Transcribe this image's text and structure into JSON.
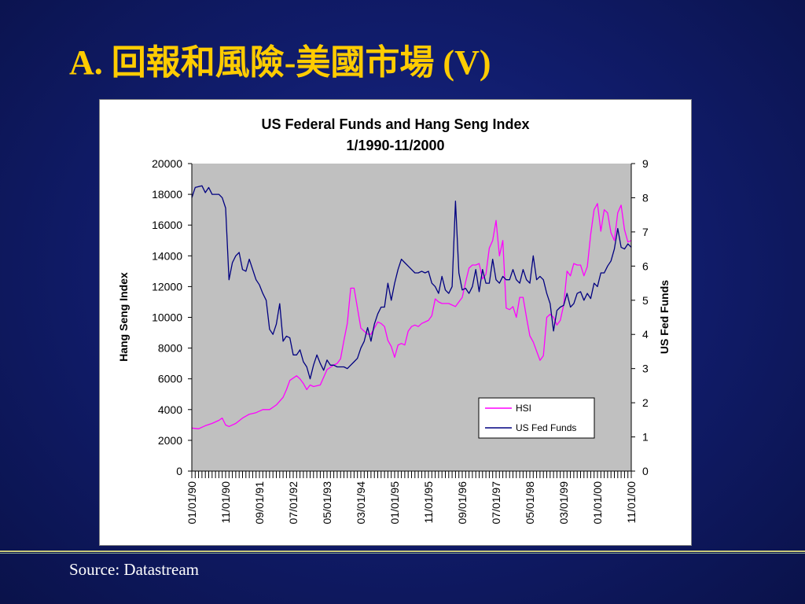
{
  "slide": {
    "title": "A. 回報和風險-美國市場 (V)",
    "source": "Source: Datastream",
    "title_color": "#ffcc00",
    "background_color": "#111d6e"
  },
  "chart_data": {
    "type": "line",
    "title": "US Federal Funds and Hang Seng Index",
    "subtitle": "1/1990-11/2000",
    "ylabel_left": "Hang Seng Index",
    "ylabel_right": "US Fed Funds",
    "ylim_left": [
      0,
      20000
    ],
    "ylim_right": [
      0,
      9
    ],
    "yticks_left": [
      "0",
      "2000",
      "4000",
      "6000",
      "8000",
      "10000",
      "12000",
      "14000",
      "16000",
      "18000",
      "20000"
    ],
    "yticks_right": [
      "0",
      "1",
      "2",
      "3",
      "4",
      "5",
      "6",
      "7",
      "8",
      "9"
    ],
    "x_start": "1990-01",
    "x_end": "2000-11",
    "xtick_labels": [
      "01/01/90",
      "11/01/90",
      "09/01/91",
      "07/01/92",
      "05/01/93",
      "03/01/94",
      "01/01/95",
      "11/01/95",
      "09/01/96",
      "07/01/97",
      "05/01/98",
      "03/01/99",
      "01/01/00",
      "11/01/00"
    ],
    "plot_background": "#c0c0c0",
    "legend_position": "lower-right",
    "series": [
      {
        "name": "HSI",
        "axis": "left",
        "color": "#ff00ff",
        "points": [
          [
            "1990-01",
            2800
          ],
          [
            "1990-03",
            2750
          ],
          [
            "1990-05",
            2950
          ],
          [
            "1990-07",
            3100
          ],
          [
            "1990-09",
            3300
          ],
          [
            "1990-10",
            3450
          ],
          [
            "1990-11",
            3000
          ],
          [
            "1990-12",
            2900
          ],
          [
            "1991-02",
            3100
          ],
          [
            "1991-04",
            3450
          ],
          [
            "1991-06",
            3700
          ],
          [
            "1991-08",
            3800
          ],
          [
            "1991-10",
            4000
          ],
          [
            "1991-12",
            4000
          ],
          [
            "1992-02",
            4300
          ],
          [
            "1992-04",
            4800
          ],
          [
            "1992-05",
            5300
          ],
          [
            "1992-06",
            5900
          ],
          [
            "1992-08",
            6200
          ],
          [
            "1992-09",
            6000
          ],
          [
            "1992-10",
            5700
          ],
          [
            "1992-11",
            5300
          ],
          [
            "1992-12",
            5600
          ],
          [
            "1993-01",
            5500
          ],
          [
            "1993-03",
            5600
          ],
          [
            "1993-05",
            6600
          ],
          [
            "1993-07",
            6900
          ],
          [
            "1993-08",
            7000
          ],
          [
            "1993-09",
            7300
          ],
          [
            "1993-10",
            8500
          ],
          [
            "1993-11",
            9600
          ],
          [
            "1993-12",
            11900
          ],
          [
            "1994-01",
            11900
          ],
          [
            "1994-02",
            10600
          ],
          [
            "1994-03",
            9300
          ],
          [
            "1994-04",
            9100
          ],
          [
            "1994-05",
            8900
          ],
          [
            "1994-06",
            8900
          ],
          [
            "1994-07",
            9300
          ],
          [
            "1994-08",
            9700
          ],
          [
            "1994-09",
            9600
          ],
          [
            "1994-10",
            9400
          ],
          [
            "1994-11",
            8500
          ],
          [
            "1994-12",
            8100
          ],
          [
            "1995-01",
            7400
          ],
          [
            "1995-02",
            8200
          ],
          [
            "1995-03",
            8300
          ],
          [
            "1995-04",
            8200
          ],
          [
            "1995-05",
            9100
          ],
          [
            "1995-06",
            9400
          ],
          [
            "1995-07",
            9500
          ],
          [
            "1995-08",
            9400
          ],
          [
            "1995-09",
            9600
          ],
          [
            "1995-10",
            9700
          ],
          [
            "1995-11",
            9800
          ],
          [
            "1995-12",
            10100
          ],
          [
            "1996-01",
            11200
          ],
          [
            "1996-02",
            11000
          ],
          [
            "1996-03",
            10900
          ],
          [
            "1996-04",
            10900
          ],
          [
            "1996-05",
            10900
          ],
          [
            "1996-06",
            10800
          ],
          [
            "1996-07",
            10700
          ],
          [
            "1996-08",
            11000
          ],
          [
            "1996-09",
            11300
          ],
          [
            "1996-10",
            12300
          ],
          [
            "1996-11",
            13200
          ],
          [
            "1996-12",
            13400
          ],
          [
            "1997-01",
            13400
          ],
          [
            "1997-02",
            13500
          ],
          [
            "1997-03",
            12500
          ],
          [
            "1997-04",
            12800
          ],
          [
            "1997-05",
            14500
          ],
          [
            "1997-06",
            15000
          ],
          [
            "1997-07",
            16300
          ],
          [
            "1997-08",
            14000
          ],
          [
            "1997-09",
            15000
          ],
          [
            "1997-10",
            10600
          ],
          [
            "1997-11",
            10500
          ],
          [
            "1997-12",
            10700
          ],
          [
            "1998-01",
            10000
          ],
          [
            "1998-02",
            11300
          ],
          [
            "1998-03",
            11300
          ],
          [
            "1998-04",
            10000
          ],
          [
            "1998-05",
            8800
          ],
          [
            "1998-06",
            8400
          ],
          [
            "1998-07",
            7800
          ],
          [
            "1998-08",
            7200
          ],
          [
            "1998-09",
            7500
          ],
          [
            "1998-10",
            10000
          ],
          [
            "1998-11",
            10200
          ],
          [
            "1998-12",
            10000
          ],
          [
            "1999-01",
            9500
          ],
          [
            "1999-02",
            9800
          ],
          [
            "1999-03",
            10800
          ],
          [
            "1999-04",
            13000
          ],
          [
            "1999-05",
            12700
          ],
          [
            "1999-06",
            13500
          ],
          [
            "1999-07",
            13400
          ],
          [
            "1999-08",
            13400
          ],
          [
            "1999-09",
            12700
          ],
          [
            "1999-10",
            13300
          ],
          [
            "1999-11",
            15400
          ],
          [
            "1999-12",
            17000
          ],
          [
            "2000-01",
            17400
          ],
          [
            "2000-02",
            15600
          ],
          [
            "2000-03",
            17000
          ],
          [
            "2000-04",
            16800
          ],
          [
            "2000-05",
            15500
          ],
          [
            "2000-06",
            15000
          ],
          [
            "2000-07",
            16800
          ],
          [
            "2000-08",
            17300
          ],
          [
            "2000-09",
            15700
          ],
          [
            "2000-10",
            14900
          ],
          [
            "2000-11",
            15000
          ]
        ]
      },
      {
        "name": "US Fed Funds",
        "axis": "right",
        "color": "#000080",
        "points": [
          [
            "1990-01",
            8.0
          ],
          [
            "1990-02",
            8.3
          ],
          [
            "1990-04",
            8.35
          ],
          [
            "1990-05",
            8.15
          ],
          [
            "1990-06",
            8.3
          ],
          [
            "1990-07",
            8.1
          ],
          [
            "1990-09",
            8.1
          ],
          [
            "1990-10",
            8.0
          ],
          [
            "1990-11",
            7.7
          ],
          [
            "1990-12",
            5.6
          ],
          [
            "1991-01",
            6.1
          ],
          [
            "1991-02",
            6.3
          ],
          [
            "1991-03",
            6.4
          ],
          [
            "1991-04",
            5.9
          ],
          [
            "1991-05",
            5.85
          ],
          [
            "1991-06",
            6.2
          ],
          [
            "1991-07",
            5.9
          ],
          [
            "1991-08",
            5.6
          ],
          [
            "1991-09",
            5.45
          ],
          [
            "1991-10",
            5.2
          ],
          [
            "1991-11",
            5.0
          ],
          [
            "1991-12",
            4.15
          ],
          [
            "1992-01",
            4.0
          ],
          [
            "1992-02",
            4.3
          ],
          [
            "1992-03",
            4.9
          ],
          [
            "1992-04",
            3.8
          ],
          [
            "1992-05",
            3.95
          ],
          [
            "1992-06",
            3.9
          ],
          [
            "1992-07",
            3.4
          ],
          [
            "1992-08",
            3.4
          ],
          [
            "1992-09",
            3.55
          ],
          [
            "1992-10",
            3.2
          ],
          [
            "1992-11",
            3.05
          ],
          [
            "1992-12",
            2.7
          ],
          [
            "1993-01",
            3.1
          ],
          [
            "1993-02",
            3.4
          ],
          [
            "1993-03",
            3.15
          ],
          [
            "1993-04",
            2.95
          ],
          [
            "1993-05",
            3.25
          ],
          [
            "1993-06",
            3.1
          ],
          [
            "1993-07",
            3.1
          ],
          [
            "1993-08",
            3.05
          ],
          [
            "1993-09",
            3.05
          ],
          [
            "1993-10",
            3.05
          ],
          [
            "1993-11",
            3.0
          ],
          [
            "1993-12",
            3.1
          ],
          [
            "1994-01",
            3.2
          ],
          [
            "1994-02",
            3.3
          ],
          [
            "1994-03",
            3.6
          ],
          [
            "1994-04",
            3.8
          ],
          [
            "1994-05",
            4.2
          ],
          [
            "1994-06",
            3.8
          ],
          [
            "1994-07",
            4.3
          ],
          [
            "1994-08",
            4.6
          ],
          [
            "1994-09",
            4.8
          ],
          [
            "1994-10",
            4.8
          ],
          [
            "1994-11",
            5.5
          ],
          [
            "1994-12",
            5.0
          ],
          [
            "1995-01",
            5.5
          ],
          [
            "1995-02",
            5.9
          ],
          [
            "1995-03",
            6.2
          ],
          [
            "1995-04",
            6.1
          ],
          [
            "1995-05",
            6.0
          ],
          [
            "1995-06",
            5.9
          ],
          [
            "1995-07",
            5.8
          ],
          [
            "1995-08",
            5.8
          ],
          [
            "1995-09",
            5.85
          ],
          [
            "1995-10",
            5.8
          ],
          [
            "1995-11",
            5.85
          ],
          [
            "1995-12",
            5.5
          ],
          [
            "1996-01",
            5.4
          ],
          [
            "1996-02",
            5.2
          ],
          [
            "1996-03",
            5.7
          ],
          [
            "1996-04",
            5.3
          ],
          [
            "1996-05",
            5.2
          ],
          [
            "1996-06",
            5.4
          ],
          [
            "1996-07",
            7.9
          ],
          [
            "1996-08",
            5.8
          ],
          [
            "1996-09",
            5.3
          ],
          [
            "1996-10",
            5.35
          ],
          [
            "1996-11",
            5.2
          ],
          [
            "1996-12",
            5.4
          ],
          [
            "1997-01",
            5.9
          ],
          [
            "1997-02",
            5.25
          ],
          [
            "1997-03",
            5.9
          ],
          [
            "1997-04",
            5.5
          ],
          [
            "1997-05",
            5.5
          ],
          [
            "1997-06",
            6.2
          ],
          [
            "1997-07",
            5.6
          ],
          [
            "1997-08",
            5.5
          ],
          [
            "1997-09",
            5.7
          ],
          [
            "1997-10",
            5.6
          ],
          [
            "1997-11",
            5.6
          ],
          [
            "1997-12",
            5.9
          ],
          [
            "1998-01",
            5.6
          ],
          [
            "1998-02",
            5.5
          ],
          [
            "1998-03",
            5.9
          ],
          [
            "1998-04",
            5.6
          ],
          [
            "1998-05",
            5.5
          ],
          [
            "1998-06",
            6.3
          ],
          [
            "1998-07",
            5.6
          ],
          [
            "1998-08",
            5.7
          ],
          [
            "1998-09",
            5.6
          ],
          [
            "1998-10",
            5.2
          ],
          [
            "1998-11",
            4.9
          ],
          [
            "1998-12",
            4.1
          ],
          [
            "1999-01",
            4.7
          ],
          [
            "1999-02",
            4.8
          ],
          [
            "1999-03",
            4.85
          ],
          [
            "1999-04",
            5.2
          ],
          [
            "1999-05",
            4.8
          ],
          [
            "1999-06",
            4.9
          ],
          [
            "1999-07",
            5.2
          ],
          [
            "1999-08",
            5.25
          ],
          [
            "1999-09",
            5.0
          ],
          [
            "1999-10",
            5.2
          ],
          [
            "1999-11",
            5.05
          ],
          [
            "1999-12",
            5.5
          ],
          [
            "2000-01",
            5.4
          ],
          [
            "2000-02",
            5.8
          ],
          [
            "2000-03",
            5.8
          ],
          [
            "2000-04",
            6.0
          ],
          [
            "2000-05",
            6.15
          ],
          [
            "2000-06",
            6.5
          ],
          [
            "2000-07",
            7.1
          ],
          [
            "2000-08",
            6.55
          ],
          [
            "2000-09",
            6.5
          ],
          [
            "2000-10",
            6.65
          ],
          [
            "2000-11",
            6.55
          ]
        ]
      }
    ]
  }
}
